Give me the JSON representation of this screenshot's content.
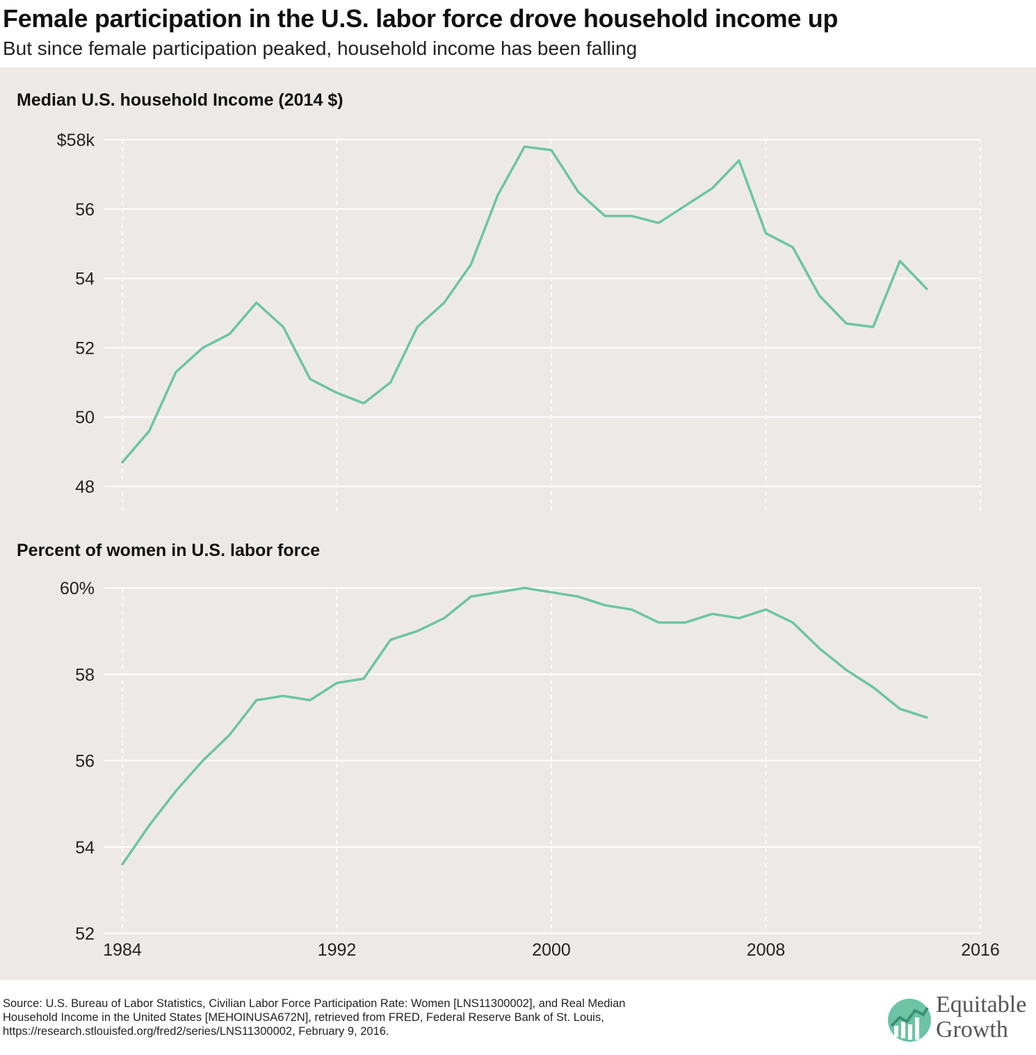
{
  "title": "Female participation in the U.S. labor force drove household income up",
  "subtitle": "But since female participation peaked, household income has been falling",
  "source_lines": [
    "Source: U.S. Bureau of Labor Statistics, Civilian Labor Force Participation Rate: Women [LNS11300002], and Real Median",
    "Household Income in the United States [MEHOINUSA672N], retrieved from FRED, Federal Reserve Bank of St. Louis,",
    "https://research.stlouisfed.org/fred2/series/LNS11300002, February 9, 2016."
  ],
  "logo": {
    "line1": "Equitable",
    "line2": "Growth",
    "color": "#6cc4a4"
  },
  "colors": {
    "line": "#6cc4a4",
    "panel_bg": "#ede9e7",
    "grid": "#ffffff"
  },
  "chart_data": [
    {
      "type": "line",
      "title": "Median U.S. household Income (2014 $)",
      "xlim": [
        1984,
        2016
      ],
      "xticks": [
        1984,
        1992,
        2000,
        2008,
        2016
      ],
      "ylim": [
        48,
        58
      ],
      "yticks": [
        48,
        50,
        52,
        54,
        56,
        58
      ],
      "ytick_labels": [
        "48",
        "50",
        "52",
        "54",
        "56",
        "$58k"
      ],
      "grid": true,
      "x": [
        1984,
        1985,
        1986,
        1987,
        1988,
        1989,
        1990,
        1991,
        1992,
        1993,
        1994,
        1995,
        1996,
        1997,
        1998,
        1999,
        2000,
        2001,
        2002,
        2003,
        2004,
        2005,
        2006,
        2007,
        2008,
        2009,
        2010,
        2011,
        2012,
        2013,
        2014
      ],
      "series": [
        {
          "values": [
            48.7,
            49.6,
            51.3,
            52.0,
            52.4,
            53.3,
            52.6,
            51.1,
            50.7,
            50.4,
            51.0,
            52.6,
            53.3,
            54.4,
            56.4,
            57.8,
            57.7,
            56.5,
            55.8,
            55.8,
            55.6,
            56.1,
            56.6,
            57.4,
            55.3,
            54.9,
            53.5,
            52.7,
            52.6,
            54.5,
            53.7
          ]
        }
      ]
    },
    {
      "type": "line",
      "title": "Percent of women in U.S. labor force",
      "xlim": [
        1984,
        2016
      ],
      "xticks": [
        1984,
        1992,
        2000,
        2008,
        2016
      ],
      "xtick_labels": [
        "1984",
        "1992",
        "2000",
        "2008",
        "2016"
      ],
      "ylim": [
        52,
        60
      ],
      "yticks": [
        52,
        54,
        56,
        58,
        60
      ],
      "ytick_labels": [
        "52",
        "54",
        "56",
        "58",
        "60%"
      ],
      "grid": true,
      "x": [
        1984,
        1985,
        1986,
        1987,
        1988,
        1989,
        1990,
        1991,
        1992,
        1993,
        1994,
        1995,
        1996,
        1997,
        1998,
        1999,
        2000,
        2001,
        2002,
        2003,
        2004,
        2005,
        2006,
        2007,
        2008,
        2009,
        2010,
        2011,
        2012,
        2013,
        2014
      ],
      "series": [
        {
          "values": [
            53.6,
            54.5,
            55.3,
            56.0,
            56.6,
            57.4,
            57.5,
            57.4,
            57.8,
            57.9,
            58.8,
            59.0,
            59.3,
            59.8,
            59.9,
            60.0,
            59.9,
            59.8,
            59.6,
            59.5,
            59.2,
            59.2,
            59.4,
            59.3,
            59.5,
            59.2,
            58.6,
            58.1,
            57.7,
            57.2,
            57.0
          ]
        }
      ]
    }
  ]
}
